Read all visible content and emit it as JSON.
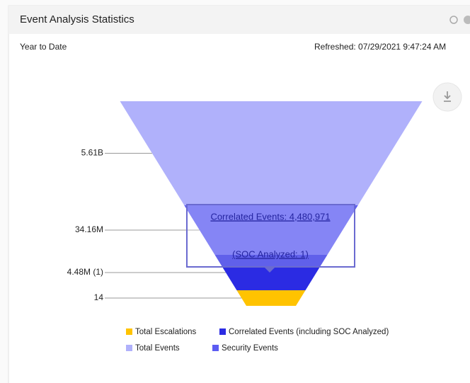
{
  "header": {
    "title": "Event Analysis Statistics",
    "period": "Year to Date",
    "refreshed": "Refreshed: 07/29/2021 9:47:24 AM"
  },
  "chart_data": {
    "type": "funnel",
    "series": [
      {
        "name": "Total Events",
        "color": "#b0b1fb",
        "values": [
          5610000000
        ],
        "value_labels": [
          "5.61B"
        ]
      },
      {
        "name": "Security Events",
        "color": "#5c5cf2",
        "values": [
          34160000
        ],
        "value_labels": [
          "34.16M"
        ]
      },
      {
        "name": "Correlated Events (including SOC Analyzed)",
        "color": "#2b2be3",
        "values": [
          4480971
        ],
        "value_labels": [
          "4.48M (1)"
        ]
      },
      {
        "name": "Total Escalations",
        "color": "#ffc300",
        "values": [
          14
        ],
        "value_labels": [
          "14"
        ]
      }
    ],
    "tooltip": {
      "line1": "Correlated Events: 4,480,971",
      "line2": "(SOC Analyzed: 1)"
    }
  }
}
